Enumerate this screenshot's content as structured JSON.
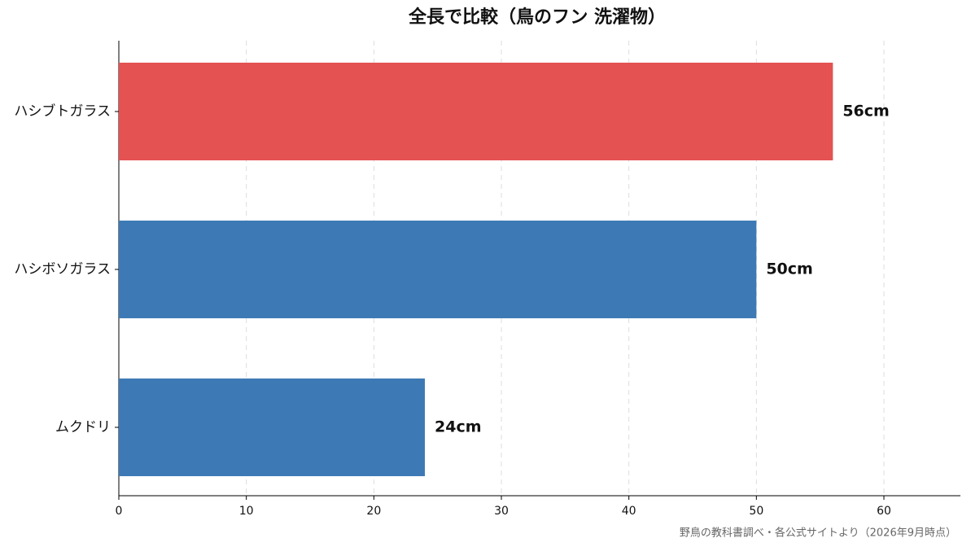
{
  "chart_data": {
    "type": "barh",
    "title": "全長で比較（鳥のフン 洗濯物）",
    "categories": [
      "ハシブトガラス",
      "ハシボソガラス",
      "ムクドリ"
    ],
    "values": [
      56,
      50,
      24
    ],
    "value_labels": [
      "56cm",
      "50cm",
      "24cm"
    ],
    "colors": [
      "#e45252",
      "#3d7ab5",
      "#3d7ab5"
    ],
    "xlim": [
      0,
      66
    ],
    "xticks": [
      0,
      10,
      20,
      30,
      40,
      50,
      60
    ],
    "grid": true,
    "source": "野鳥の教科書調べ・各公式サイトより（2026年9月時点）"
  }
}
